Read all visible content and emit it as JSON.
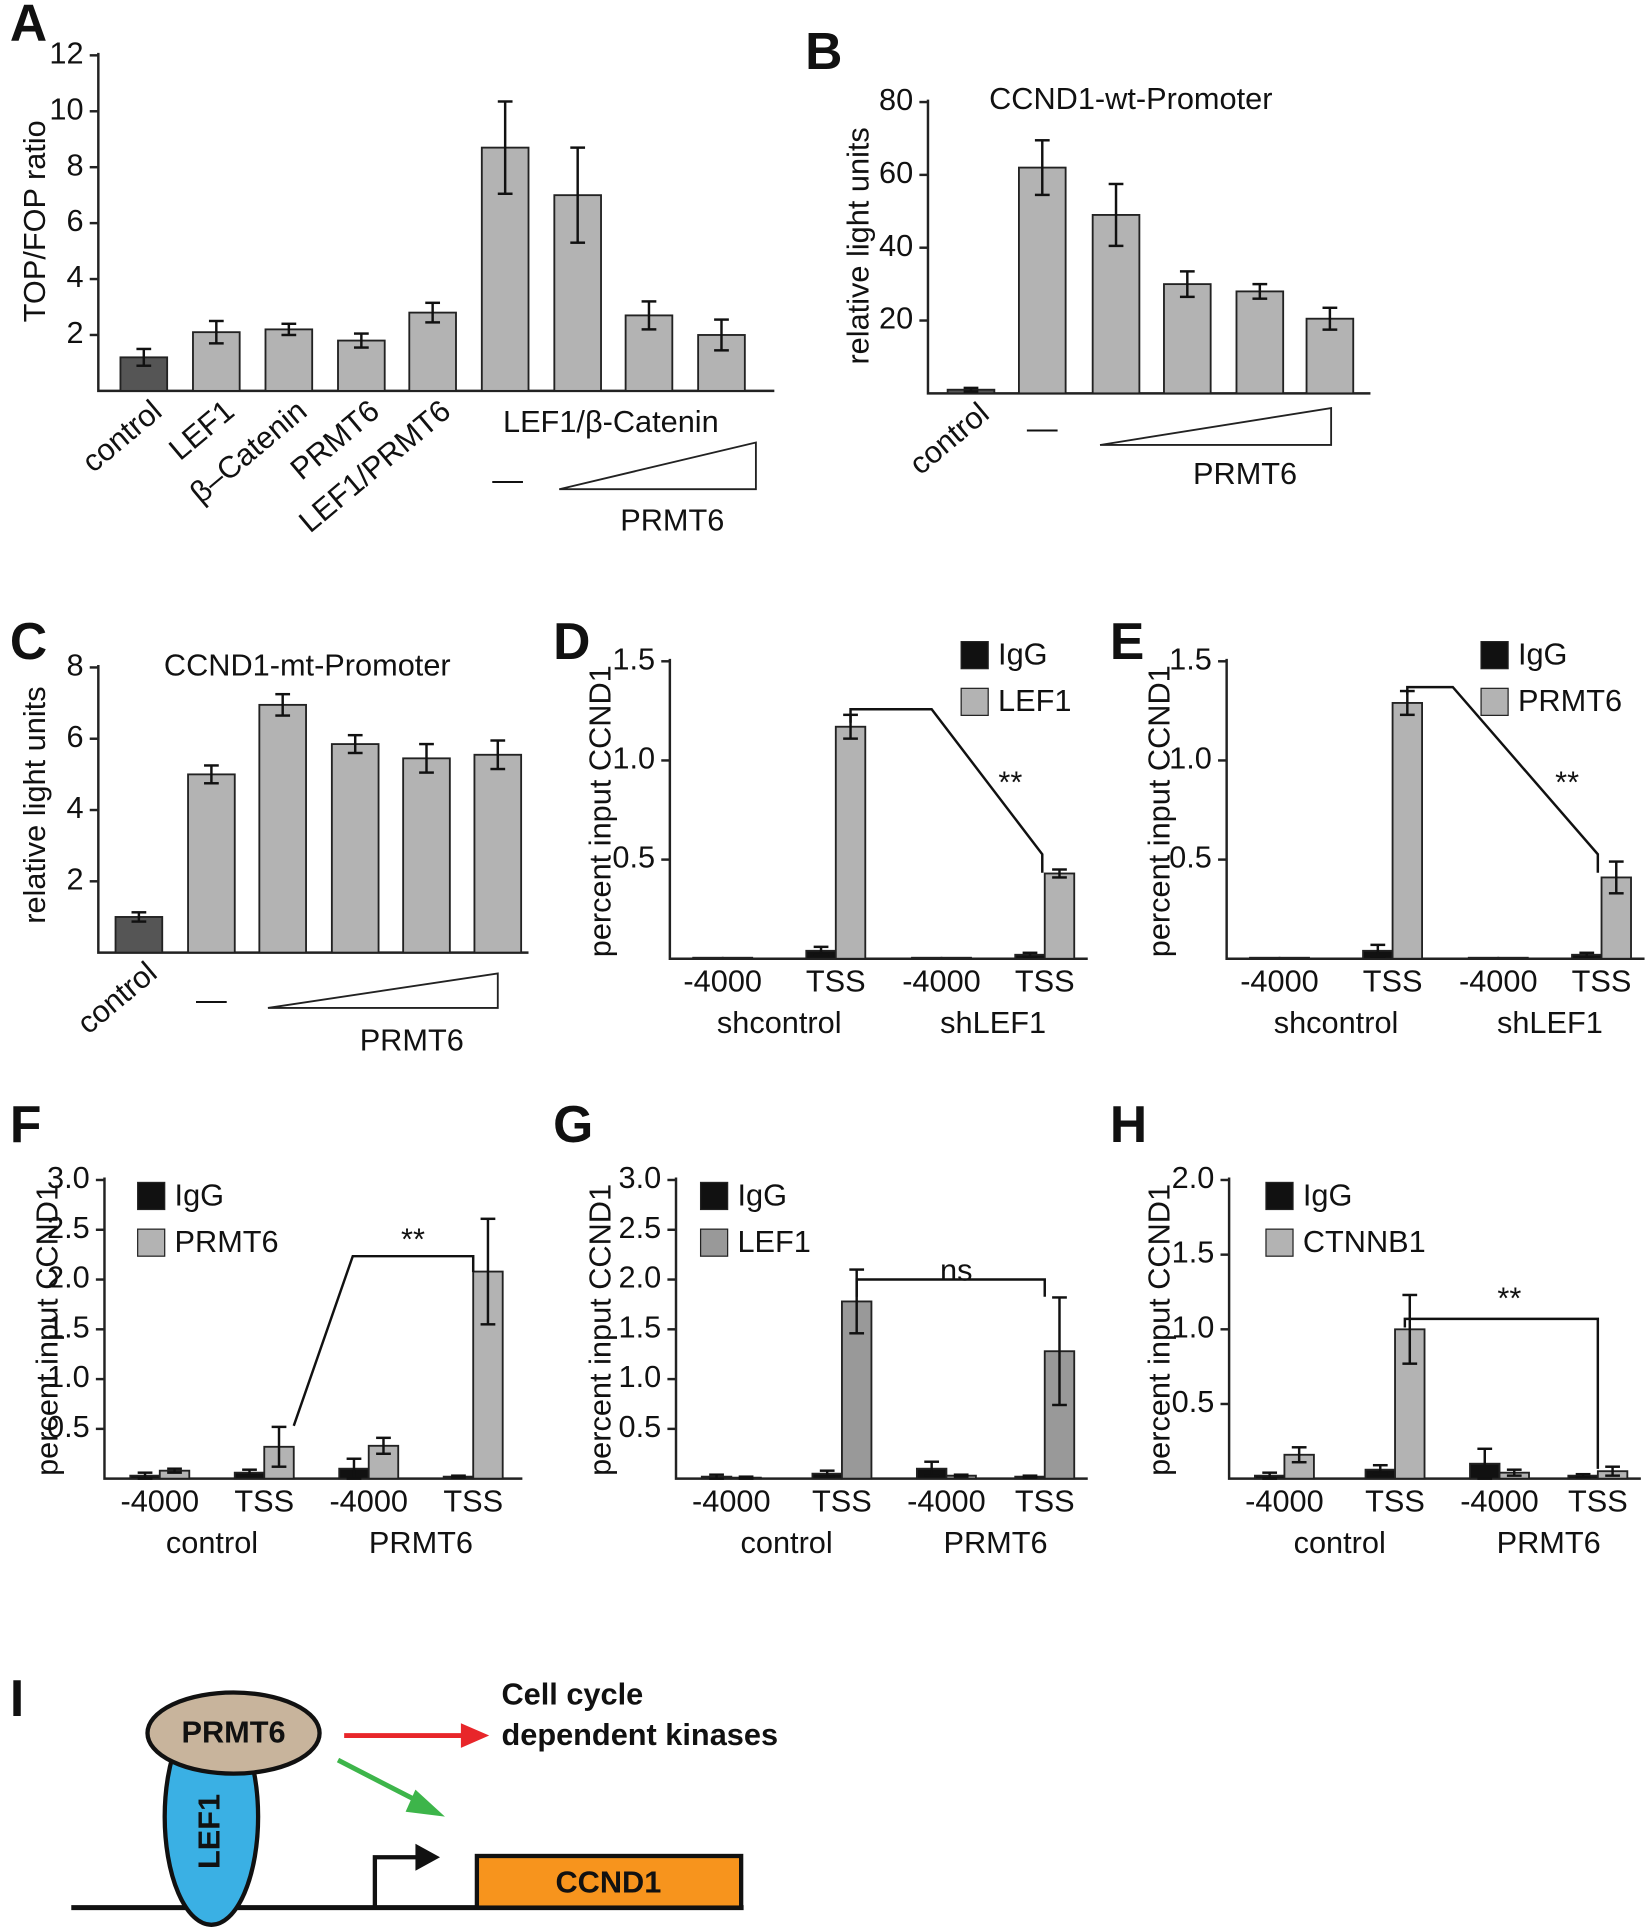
{
  "chart_data": [
    {
      "type": "bar",
      "panel": "A",
      "ylabel": "TOP/FOP ratio",
      "categories": [
        "control",
        "LEF1",
        "β–Catenin",
        "PRMT6",
        "LEF1/PRMT6",
        null,
        null,
        null,
        null
      ],
      "values": [
        1.2,
        2.1,
        2.2,
        1.8,
        2.8,
        8.7,
        7.0,
        2.7,
        2.0
      ],
      "errors": [
        0.3,
        0.4,
        0.2,
        0.25,
        0.35,
        1.65,
        1.7,
        0.5,
        0.55
      ],
      "colors": [
        "#555555",
        "#b3b3b3",
        "#b3b3b3",
        "#b3b3b3",
        "#b3b3b3",
        "#b3b3b3",
        "#b3b3b3",
        "#b3b3b3",
        "#b3b3b3"
      ],
      "ylim": [
        0,
        12
      ],
      "yticks": [
        2,
        4,
        6,
        8,
        10,
        12
      ],
      "group_label": "LEF1/β-Catenin",
      "dash": "—",
      "wedge_label": "PRMT6"
    },
    {
      "type": "bar",
      "panel": "B",
      "title": "CCND1-wt-Promoter",
      "ylabel": "relative light units",
      "categories": [
        "control",
        null,
        null,
        null,
        null,
        null
      ],
      "values": [
        1,
        62,
        49,
        30,
        28,
        20.5
      ],
      "errors": [
        0.5,
        7.5,
        8.5,
        3.5,
        2,
        3
      ],
      "colors": [
        "#555555",
        "#b3b3b3",
        "#b3b3b3",
        "#b3b3b3",
        "#b3b3b3",
        "#b3b3b3"
      ],
      "ylim": [
        0,
        80
      ],
      "yticks": [
        20,
        40,
        60,
        80
      ],
      "dash": "—",
      "wedge_label": "PRMT6"
    },
    {
      "type": "bar",
      "panel": "C",
      "title": "CCND1-mt-Promoter",
      "ylabel": "relative light units",
      "categories": [
        "control",
        null,
        null,
        null,
        null,
        null
      ],
      "values": [
        1.0,
        5.0,
        6.95,
        5.85,
        5.45,
        5.55
      ],
      "errors": [
        0.13,
        0.25,
        0.3,
        0.25,
        0.4,
        0.4
      ],
      "colors": [
        "#555555",
        "#b3b3b3",
        "#b3b3b3",
        "#b3b3b3",
        "#b3b3b3",
        "#b3b3b3"
      ],
      "ylim": [
        0,
        8
      ],
      "yticks": [
        2,
        4,
        6,
        8
      ],
      "dash": "—",
      "wedge_label": "PRMT6"
    },
    {
      "type": "grouped",
      "panel": "D",
      "ylabel": "percent input CCND1",
      "categories": [
        "-4000",
        "TSS",
        "-4000",
        "TSS"
      ],
      "group_labels": [
        "shcontrol",
        "shLEF1"
      ],
      "series": [
        {
          "name": "IgG",
          "color": "#111111",
          "values": [
            0.005,
            0.04,
            0.005,
            0.02
          ],
          "errors": [
            0,
            0.02,
            0,
            0.01
          ]
        },
        {
          "name": "LEF1",
          "color": "#b3b3b3",
          "values": [
            0.005,
            1.17,
            0.005,
            0.43
          ],
          "errors": [
            0,
            0.06,
            0,
            0.02
          ]
        }
      ],
      "ylim": [
        0,
        1.5
      ],
      "yticks": [
        0.5,
        {
          "value": 1,
          "label": "1.0"
        },
        1.5
      ],
      "significance": "**"
    },
    {
      "type": "grouped",
      "panel": "E",
      "ylabel": "percent input CCND1",
      "categories": [
        "-4000",
        "TSS",
        "-4000",
        "TSS"
      ],
      "group_labels": [
        "shcontrol",
        "shLEF1"
      ],
      "series": [
        {
          "name": "IgG",
          "color": "#111111",
          "values": [
            0.005,
            0.04,
            0.005,
            0.02
          ],
          "errors": [
            0,
            0.03,
            0,
            0.01
          ]
        },
        {
          "name": "PRMT6",
          "color": "#b3b3b3",
          "values": [
            0.005,
            1.29,
            0.005,
            0.41
          ],
          "errors": [
            0,
            0.06,
            0,
            0.08
          ]
        }
      ],
      "ylim": [
        0,
        1.5
      ],
      "yticks": [
        0.5,
        {
          "value": 1,
          "label": "1.0"
        },
        1.5
      ],
      "significance": "**"
    },
    {
      "type": "grouped",
      "panel": "F",
      "ylabel": "percent input CCND1",
      "categories": [
        "-4000",
        "TSS",
        "-4000",
        "TSS"
      ],
      "group_labels": [
        "control",
        "PRMT6"
      ],
      "series": [
        {
          "name": "IgG",
          "color": "#111111",
          "values": [
            0.03,
            0.06,
            0.1,
            0.02
          ],
          "errors": [
            0.03,
            0.03,
            0.1,
            0.01
          ]
        },
        {
          "name": "PRMT6",
          "color": "#b3b3b3",
          "values": [
            0.08,
            0.32,
            0.33,
            2.08
          ],
          "errors": [
            0.02,
            0.2,
            0.08,
            0.53
          ]
        }
      ],
      "ylim": [
        0,
        3
      ],
      "yticks": [
        0.5,
        {
          "value": 1,
          "label": "1.0"
        },
        1.5,
        {
          "value": 2,
          "label": "2.0"
        },
        2.5,
        {
          "value": 3,
          "label": "3.0"
        }
      ],
      "significance": "**"
    },
    {
      "type": "grouped",
      "panel": "G",
      "ylabel": "percent input CCND1",
      "categories": [
        "-4000",
        "TSS",
        "-4000",
        "TSS"
      ],
      "group_labels": [
        "control",
        "PRMT6"
      ],
      "series": [
        {
          "name": "IgG",
          "color": "#111111",
          "values": [
            0.02,
            0.05,
            0.1,
            0.02
          ],
          "errors": [
            0.02,
            0.03,
            0.07,
            0.01
          ]
        },
        {
          "name": "LEF1",
          "color": "#999999",
          "values": [
            0.01,
            1.78,
            0.03,
            1.28
          ],
          "errors": [
            0.01,
            0.32,
            0.01,
            0.54
          ]
        }
      ],
      "ylim": [
        0,
        3
      ],
      "yticks": [
        0.5,
        {
          "value": 1,
          "label": "1.0"
        },
        1.5,
        {
          "value": 2,
          "label": "2.0"
        },
        2.5,
        {
          "value": 3,
          "label": "3.0"
        }
      ],
      "significance": "ns"
    },
    {
      "type": "grouped",
      "panel": "H",
      "ylabel": "percent input CCND1",
      "categories": [
        "-4000",
        "TSS",
        "-4000",
        "TSS"
      ],
      "group_labels": [
        "control",
        "PRMT6"
      ],
      "series": [
        {
          "name": "IgG",
          "color": "#111111",
          "values": [
            0.02,
            0.06,
            0.1,
            0.02
          ],
          "errors": [
            0.02,
            0.03,
            0.1,
            0.01
          ]
        },
        {
          "name": "CTNNB1",
          "color": "#b3b3b3",
          "values": [
            0.16,
            1.0,
            0.04,
            0.05
          ],
          "errors": [
            0.05,
            0.23,
            0.02,
            0.03
          ]
        }
      ],
      "ylim": [
        0,
        2
      ],
      "yticks": [
        0.5,
        {
          "value": 1,
          "label": "1.0"
        },
        1.5,
        {
          "value": 2,
          "label": "2.0"
        }
      ],
      "significance": "**"
    }
  ],
  "diagram": {
    "panel": "I",
    "nodes": [
      "PRMT6",
      "LEF1",
      "CCND1"
    ],
    "target_lines": [
      "Cell cycle",
      "dependent kinases"
    ]
  }
}
